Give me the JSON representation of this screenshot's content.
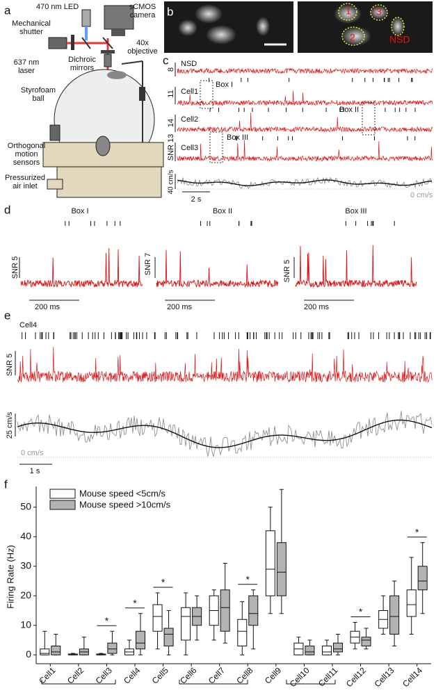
{
  "panel_a": {
    "letter": "a",
    "led": "470 nm LED",
    "camera": [
      "sCMOS",
      "camera"
    ],
    "shutter": [
      "Mechanical",
      "shutter"
    ],
    "mirrors": [
      "Dichroic",
      "mirrors"
    ],
    "objective": [
      "40x",
      "objective"
    ],
    "laser": [
      "637 nm",
      "laser"
    ],
    "ball": [
      "Styrofoam",
      "ball"
    ],
    "sensors": [
      "Orthogonal",
      "motion",
      "sensors"
    ],
    "air": [
      "Pressurized",
      "air inlet"
    ]
  },
  "panel_b": {
    "letter": "b",
    "rois": [
      "1",
      "2",
      "3"
    ],
    "nsd": "NSD"
  },
  "panel_c": {
    "letter": "c",
    "rows": [
      "NSD",
      "Cell1",
      "Cell2",
      "Cell3"
    ],
    "scales": [
      "8",
      "11",
      "14",
      "SNR 13"
    ],
    "boxes": [
      "Box I",
      "Box II",
      "Box III"
    ],
    "speed_scale": "40 cm/s",
    "speed_zero": "0 cm/s",
    "time_scale": "2 s"
  },
  "panel_d": {
    "letter": "d",
    "titles": [
      "Box I",
      "Box II",
      "Box III"
    ],
    "scales": [
      "SNR 5",
      "SNR 7",
      "SNR 5"
    ],
    "time_scales": [
      "200 ms",
      "200 ms",
      "200 ms"
    ]
  },
  "panel_e": {
    "letter": "e",
    "cell": "Cell4",
    "scale": "SNR 5",
    "speed_scale": "25 cm/s",
    "speed_zero": "0 cm/s",
    "time_scale": "1 s"
  },
  "chart_data": {
    "type": "box",
    "letter": "f",
    "y_label": "Firing Rate (Hz)",
    "categories": [
      "Cell1",
      "Cell2",
      "Cell3",
      "Cell4",
      "Cell5",
      "Cell6",
      "Cell7",
      "Cell8",
      "Cell9",
      "Cell10",
      "Cell11",
      "Cell12",
      "Cell13",
      "Cell14"
    ],
    "ylim": [
      -3,
      57
    ],
    "yticks": [
      0,
      10,
      20,
      30,
      40,
      50
    ],
    "legend": "upper left",
    "series": [
      {
        "name": "Mouse speed <5cm/s",
        "color": "#ffffff",
        "values": [
          {
            "min": 0,
            "q1": 0,
            "median": 0.5,
            "q3": 2,
            "max": 8
          },
          {
            "min": 0,
            "q1": 0,
            "median": 0,
            "q3": 0.3,
            "max": 0.5
          },
          {
            "min": 0,
            "q1": 0,
            "median": 0,
            "q3": 0.3,
            "max": 0.5
          },
          {
            "min": 0,
            "q1": 0,
            "median": 1,
            "q3": 2,
            "max": 5
          },
          {
            "min": 2,
            "q1": 8,
            "median": 13,
            "q3": 17,
            "max": 21
          },
          {
            "min": 0,
            "q1": 5,
            "median": 13,
            "q3": 16,
            "max": 21
          },
          {
            "min": 5,
            "q1": 10,
            "median": 15,
            "q3": 20,
            "max": 22
          },
          {
            "min": 0,
            "q1": 3,
            "median": 8,
            "q3": 12,
            "max": 18
          },
          {
            "min": 14,
            "q1": 20,
            "median": 29,
            "q3": 42,
            "max": 50
          },
          {
            "min": 0,
            "q1": 0,
            "median": 2,
            "q3": 4,
            "max": 6
          },
          {
            "min": 0,
            "q1": 0,
            "median": 1,
            "q3": 3,
            "max": 5
          },
          {
            "min": 2,
            "q1": 4,
            "median": 6,
            "q3": 8,
            "max": 11
          },
          {
            "min": 7,
            "q1": 9,
            "median": 12,
            "q3": 15,
            "max": 20
          },
          {
            "min": 7,
            "q1": 13,
            "median": 17,
            "q3": 22,
            "max": 33
          }
        ]
      },
      {
        "name": "Mouse speed >10cm/s",
        "color": "#b3b3b3",
        "values": [
          {
            "min": 0,
            "q1": 0,
            "median": 1,
            "q3": 3,
            "max": 7
          },
          {
            "min": 0,
            "q1": 0,
            "median": 1,
            "q3": 2,
            "max": 6
          },
          {
            "min": 0,
            "q1": 0.5,
            "median": 2,
            "q3": 4,
            "max": 8
          },
          {
            "min": 0,
            "q1": 2,
            "median": 4,
            "q3": 8,
            "max": 14
          },
          {
            "min": 0,
            "q1": 3,
            "median": 7,
            "q3": 9,
            "max": 15
          },
          {
            "min": 5,
            "q1": 10,
            "median": 13,
            "q3": 16,
            "max": 20
          },
          {
            "min": 4,
            "q1": 8,
            "median": 16,
            "q3": 22,
            "max": 31
          },
          {
            "min": 2,
            "q1": 10,
            "median": 14,
            "q3": 20,
            "max": 22
          },
          {
            "min": 14,
            "q1": 20,
            "median": 28,
            "q3": 38,
            "max": 56
          },
          {
            "min": 0,
            "q1": 0,
            "median": 1,
            "q3": 3,
            "max": 5
          },
          {
            "min": 0,
            "q1": 1,
            "median": 2,
            "q3": 4,
            "max": 7
          },
          {
            "min": 2,
            "q1": 3,
            "median": 5,
            "q3": 6,
            "max": 9
          },
          {
            "min": 3,
            "q1": 7,
            "median": 13,
            "q3": 20,
            "max": 25
          },
          {
            "min": 14,
            "q1": 22,
            "median": 25,
            "q3": 30,
            "max": 38
          }
        ]
      }
    ],
    "significance": [
      {
        "category": "Cell3",
        "label": "*"
      },
      {
        "category": "Cell4",
        "label": "*"
      },
      {
        "category": "Cell5",
        "label": "*"
      },
      {
        "category": "Cell8",
        "label": "*"
      },
      {
        "category": "Cell12",
        "label": "*"
      },
      {
        "category": "Cell14",
        "label": "*"
      }
    ]
  }
}
